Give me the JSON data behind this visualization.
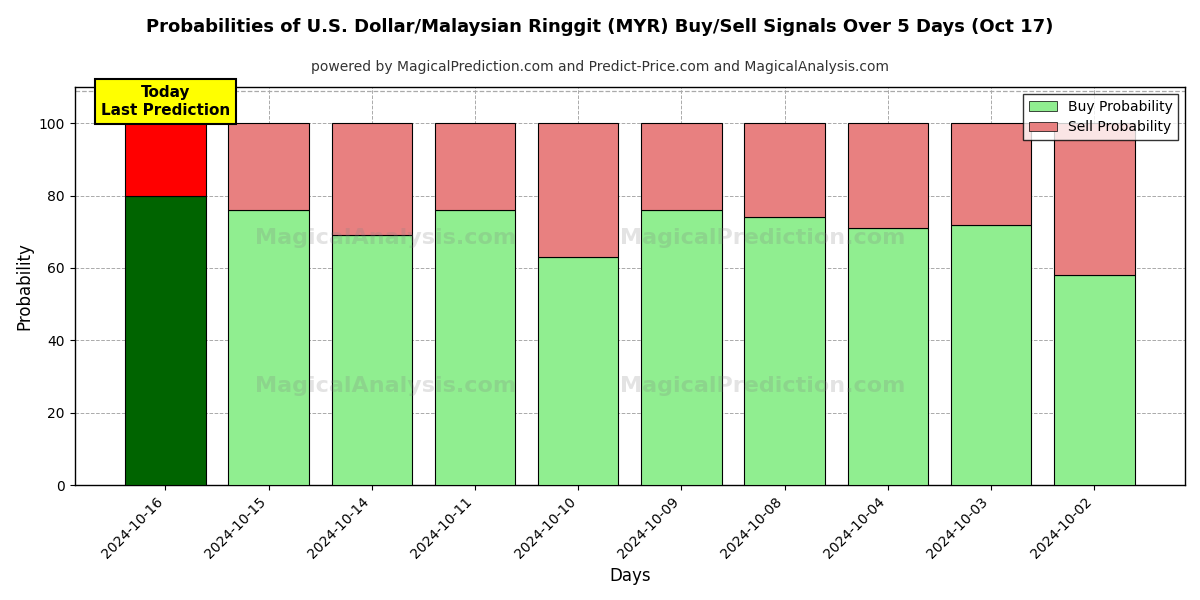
{
  "title": "Probabilities of U.S. Dollar/Malaysian Ringgit (MYR) Buy/Sell Signals Over 5 Days (Oct 17)",
  "subtitle": "powered by MagicalPrediction.com and Predict-Price.com and MagicalAnalysis.com",
  "xlabel": "Days",
  "ylabel": "Probability",
  "dates": [
    "2024-10-16",
    "2024-10-15",
    "2024-10-14",
    "2024-10-11",
    "2024-10-10",
    "2024-10-09",
    "2024-10-08",
    "2024-10-04",
    "2024-10-03",
    "2024-10-02"
  ],
  "buy_values": [
    80,
    76,
    69,
    76,
    63,
    76,
    74,
    71,
    72,
    58
  ],
  "sell_values": [
    20,
    24,
    31,
    24,
    37,
    24,
    26,
    29,
    28,
    42
  ],
  "today_buy_color": "#006400",
  "today_sell_color": "#FF0000",
  "buy_color": "#90EE90",
  "sell_color": "#E88080",
  "today_label_bg": "#FFFF00",
  "today_label_text": "Today\nLast Prediction",
  "legend_buy": "Buy Probability",
  "legend_sell": "Sell Probability",
  "ylim": [
    0,
    110
  ],
  "yticks": [
    0,
    20,
    40,
    60,
    80,
    100
  ],
  "dashed_line_y": 109,
  "watermark_texts": [
    "MagicalAnalysis.com",
    "MagicalPrediction.com"
  ],
  "background_color": "#ffffff",
  "grid_color": "#aaaaaa"
}
